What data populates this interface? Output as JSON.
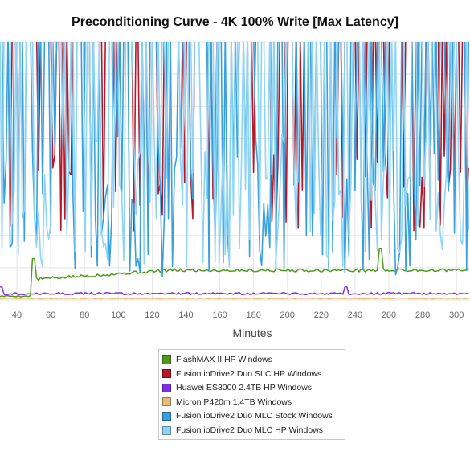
{
  "chart_data": {
    "type": "line",
    "title": "Preconditioning Curve - 4K 100% Write [Max Latency]",
    "xlabel": "Minutes",
    "ylabel": "",
    "x_ticks": [
      40,
      60,
      80,
      100,
      120,
      140,
      160,
      180,
      200,
      220,
      240,
      260,
      280,
      300
    ],
    "xlim": [
      30,
      308
    ],
    "ylim": [
      0,
      100
    ],
    "grid": "both",
    "legend_position": "bottom",
    "series": [
      {
        "name": "FlashMAX II HP Windows",
        "color": "#4e9a1a",
        "style": "ramp",
        "base": 1.5,
        "step_x": 50,
        "post_level": 8,
        "end_level": 11.5,
        "spike_x": [
          50,
          255
        ],
        "spike_y": [
          16,
          20
        ]
      },
      {
        "name": "Fusion ioDrive2 Duo SLC HP Windows",
        "color": "#b5182b",
        "style": "noisy",
        "low": 26,
        "high": 78,
        "spike_prob": 0.72,
        "seed": 11
      },
      {
        "name": "Huawei ES3000 2.4TB HP Windows",
        "color": "#7d2ee6",
        "style": "flat",
        "level": 2.5,
        "noise": 0.8,
        "spikes_x": [
          30,
          235
        ],
        "spike_y": [
          5,
          5
        ]
      },
      {
        "name": "Micron P420m 1.4TB Windows",
        "color": "#e8bb7a",
        "style": "flat",
        "level": 0.6,
        "noise": 0.3,
        "spikes_x": [],
        "spike_y": []
      },
      {
        "name": "Fusion ioDrive2 Duo MLC Stock Windows",
        "color": "#3aa0dd",
        "style": "noisy",
        "low": 9,
        "high": 100,
        "spike_prob": 0.55,
        "seed": 23
      },
      {
        "name": "Fusion ioDrive2 Duo MLC HP Windows",
        "color": "#8fd4f5",
        "style": "noisy",
        "low": 12,
        "high": 100,
        "spike_prob": 0.5,
        "seed": 37
      }
    ]
  },
  "colors": {
    "grid": "#e4e4e4",
    "axis_text": "#666666",
    "title": "#111111"
  }
}
